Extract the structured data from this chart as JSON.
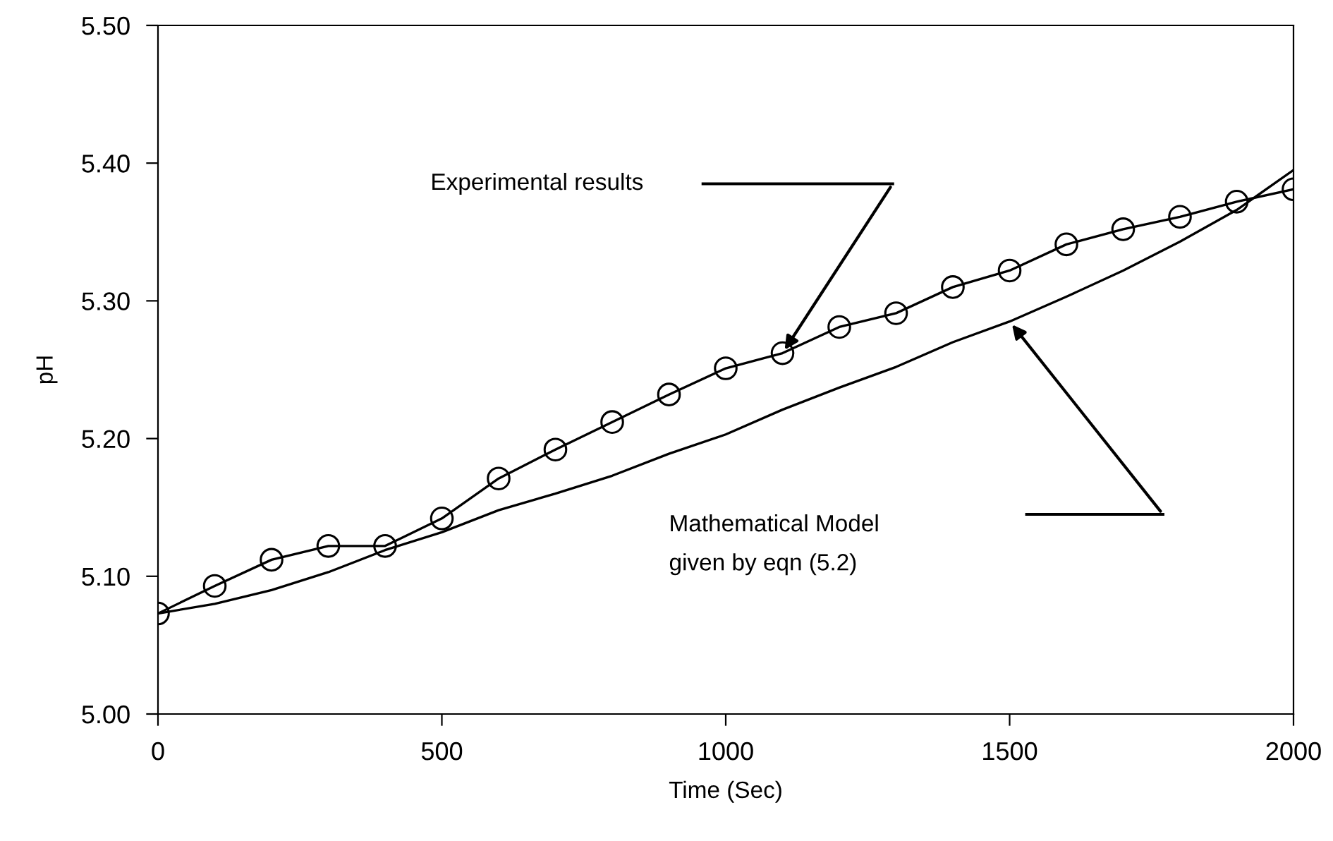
{
  "chart_data": {
    "type": "line",
    "xlabel": "Time (Sec)",
    "ylabel": "pH",
    "series": [
      {
        "marker": "circle",
        "color": "#000000",
        "x": [
          0,
          100,
          200,
          300,
          400,
          500,
          600,
          700,
          800,
          900,
          1000,
          1100,
          1200,
          1300,
          1400,
          1500,
          1600,
          1700,
          1800,
          1900,
          2000
        ],
        "values": [
          5.073,
          5.093,
          5.112,
          5.122,
          5.122,
          5.142,
          5.171,
          5.192,
          5.212,
          5.232,
          5.251,
          5.262,
          5.281,
          5.291,
          5.31,
          5.322,
          5.341,
          5.352,
          5.361,
          5.372,
          5.381
        ]
      },
      {
        "marker": "none",
        "color": "#000000",
        "x": [
          0,
          100,
          200,
          300,
          400,
          500,
          600,
          700,
          800,
          900,
          1000,
          1100,
          1200,
          1300,
          1400,
          1500,
          1600,
          1700,
          1800,
          1900,
          2000
        ],
        "values": [
          5.073,
          5.08,
          5.09,
          5.103,
          5.119,
          5.132,
          5.148,
          5.16,
          5.173,
          5.189,
          5.203,
          5.221,
          5.237,
          5.252,
          5.27,
          5.285,
          5.303,
          5.322,
          5.343,
          5.366,
          5.395
        ]
      }
    ],
    "annotations": [
      "Experimental results",
      "Mathematical Model\ngiven by eqn (5.2)"
    ],
    "xlim": [
      0,
      2000
    ],
    "xticks": [
      0,
      500,
      1000,
      1500,
      2000
    ],
    "ylim": [
      5.0,
      5.5
    ],
    "yticks": [
      {
        "value": 5.0,
        "label": "5.00"
      },
      {
        "value": 5.1,
        "label": "5.10"
      },
      {
        "value": 5.2,
        "label": "5.20"
      },
      {
        "value": 5.3,
        "label": "5.30"
      },
      {
        "value": 5.4,
        "label": "5.40"
      },
      {
        "value": 5.5,
        "label": "5.50"
      }
    ],
    "grid": false,
    "legend": false
  }
}
